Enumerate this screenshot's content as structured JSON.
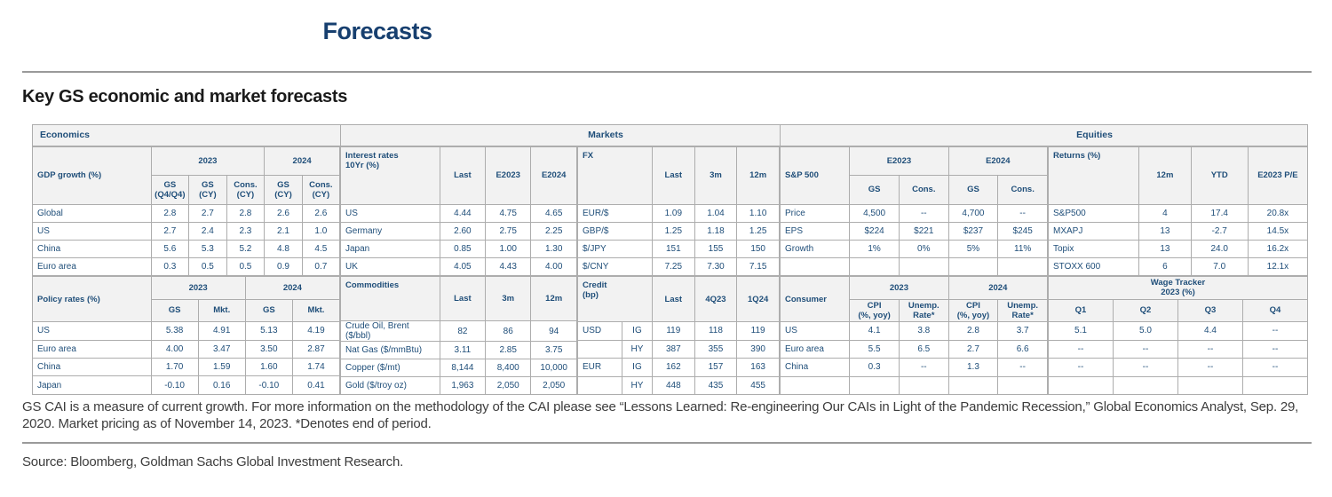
{
  "page": {
    "title": "Forecasts",
    "heading": "Key GS economic and market forecasts",
    "footnote": "GS CAI is a measure of current growth. For more information on the methodology of the CAI please see “Lessons Learned: Re-engineering Our CAIs in Light of the Pandemic Recession,” Global Economics Analyst, Sep. 29, 2020. Market pricing as of November 14, 2023. *Denotes end of period.",
    "source": "Source: Bloomberg, Goldman Sachs Global Investment Research."
  },
  "colors": {
    "title_navy": "#173F6F",
    "text_navy": "#1F4E79",
    "grid_line": "#ADADAD",
    "header_bg": "#F2F2F2"
  },
  "band": {
    "economics": "Economics",
    "markets": "Markets",
    "equities": "Equities"
  },
  "blocks": {
    "gdp": {
      "label_col": true,
      "hh": [
        32,
        33
      ],
      "header": [
        [
          {
            "t": "GDP growth (%)",
            "rs": 2,
            "c": "lbl"
          },
          {
            "t": "2023",
            "cs": 3
          },
          {
            "t": "2024",
            "cs": 2
          }
        ],
        [
          {
            "t": "GS\n(Q4/Q4)"
          },
          {
            "t": "GS\n(CY)"
          },
          {
            "t": "Cons.\n(CY)"
          },
          {
            "t": "GS\n(CY)"
          },
          {
            "t": "Cons.\n(CY)"
          }
        ]
      ],
      "rows": [
        [
          "Global",
          "2.8",
          "2.7",
          "2.8",
          "2.6",
          "2.6"
        ],
        [
          "US",
          "2.7",
          "2.4",
          "2.3",
          "2.1",
          "1.0"
        ],
        [
          "China",
          "5.6",
          "5.3",
          "5.2",
          "4.8",
          "4.5"
        ],
        [
          "Euro area",
          "0.3",
          "0.5",
          "0.5",
          "0.9",
          "0.7"
        ]
      ]
    },
    "policy": {
      "label_col": true,
      "hh": [
        25,
        25
      ],
      "header": [
        [
          {
            "t": "Policy rates (%)",
            "rs": 2,
            "c": "lbl"
          },
          {
            "t": "2023",
            "cs": 2
          },
          {
            "t": "2024",
            "cs": 2
          }
        ],
        [
          {
            "t": "GS"
          },
          {
            "t": "Mkt."
          },
          {
            "t": "GS"
          },
          {
            "t": "Mkt."
          }
        ]
      ],
      "rows": [
        [
          "US",
          "5.38",
          "4.91",
          "5.13",
          "4.19"
        ],
        [
          "Euro area",
          "4.00",
          "3.47",
          "3.50",
          "2.87"
        ],
        [
          "China",
          "1.70",
          "1.59",
          "1.60",
          "1.74"
        ],
        [
          "Japan",
          "-0.10",
          "0.16",
          "-0.10",
          "0.41"
        ]
      ]
    },
    "rates10": {
      "label_col": true,
      "hh": [
        65
      ],
      "header": [
        [
          {
            "t": "Interest rates\n10Yr (%)",
            "c": "lbl top"
          },
          {
            "t": "Last"
          },
          {
            "t": "E2023"
          },
          {
            "t": "E2024"
          }
        ]
      ],
      "rows": [
        [
          "US",
          "4.44",
          "4.75",
          "4.65"
        ],
        [
          "Germany",
          "2.60",
          "2.75",
          "2.25"
        ],
        [
          "Japan",
          "0.85",
          "1.00",
          "1.30"
        ],
        [
          "UK",
          "4.05",
          "4.43",
          "4.00"
        ]
      ]
    },
    "commodities": {
      "label_col": true,
      "hh": [
        50
      ],
      "header": [
        [
          {
            "t": "Commodities",
            "c": "lbl top"
          },
          {
            "t": "Last"
          },
          {
            "t": "3m"
          },
          {
            "t": "12m"
          }
        ]
      ],
      "rows": [
        [
          "Crude Oil, Brent ($/bbl)",
          "82",
          "86",
          "94"
        ],
        [
          "Nat Gas ($/mmBtu)",
          "3.11",
          "2.85",
          "3.75"
        ],
        [
          "Copper ($/mt)",
          "8,144",
          "8,400",
          "10,000"
        ],
        [
          "Gold ($/troy oz)",
          "1,963",
          "2,050",
          "2,050"
        ]
      ]
    },
    "fx": {
      "label_col": true,
      "hh": [
        65
      ],
      "header": [
        [
          {
            "t": "FX",
            "c": "lbl top"
          },
          {
            "t": "Last"
          },
          {
            "t": "3m"
          },
          {
            "t": "12m"
          }
        ]
      ],
      "rows": [
        [
          "EUR/$",
          "1.09",
          "1.04",
          "1.10"
        ],
        [
          "GBP/$",
          "1.25",
          "1.18",
          "1.25"
        ],
        [
          "$/JPY",
          "151",
          "155",
          "150"
        ],
        [
          "$/CNY",
          "7.25",
          "7.30",
          "7.15"
        ]
      ]
    },
    "credit": {
      "label_col": true,
      "hh": [
        50
      ],
      "header": [
        [
          {
            "t": "Credit\n(bp)",
            "cs": 2,
            "c": "lbl top"
          },
          {
            "t": "Last"
          },
          {
            "t": "4Q23"
          },
          {
            "t": "1Q24"
          }
        ]
      ],
      "rows": [
        [
          "USD",
          "IG",
          "119",
          "118",
          "119"
        ],
        [
          "",
          "HY",
          "387",
          "355",
          "390"
        ],
        [
          "EUR",
          "IG",
          "162",
          "157",
          "163"
        ],
        [
          "",
          "HY",
          "448",
          "435",
          "455"
        ]
      ]
    },
    "spx": {
      "label_col": true,
      "hh": [
        32,
        33
      ],
      "header": [
        [
          {
            "t": "S&P 500",
            "rs": 2,
            "c": "lbl"
          },
          {
            "t": "E2023",
            "cs": 2
          },
          {
            "t": "E2024",
            "cs": 2
          }
        ],
        [
          {
            "t": "GS"
          },
          {
            "t": "Cons."
          },
          {
            "t": "GS"
          },
          {
            "t": "Cons."
          }
        ]
      ],
      "rows": [
        [
          "Price",
          "4,500",
          "--",
          "4,700",
          "--"
        ],
        [
          "EPS",
          "$224",
          "$221",
          "$237",
          "$245"
        ],
        [
          "Growth",
          "1%",
          "0%",
          "5%",
          "11%"
        ],
        [
          "",
          "",
          "",
          "",
          ""
        ]
      ]
    },
    "consumer": {
      "label_col": true,
      "hh": [
        25,
        25
      ],
      "header": [
        [
          {
            "t": "Consumer",
            "rs": 2,
            "c": "lbl"
          },
          {
            "t": "2023",
            "cs": 2
          },
          {
            "t": "2024",
            "cs": 2
          }
        ],
        [
          {
            "t": "CPI\n(%, yoy)"
          },
          {
            "t": "Unemp.\nRate*"
          },
          {
            "t": "CPI\n(%, yoy)"
          },
          {
            "t": "Unemp.\nRate*"
          }
        ]
      ],
      "rows": [
        [
          "US",
          "4.1",
          "3.8",
          "2.8",
          "3.7"
        ],
        [
          "Euro area",
          "5.5",
          "6.5",
          "2.7",
          "6.6"
        ],
        [
          "China",
          "0.3",
          "--",
          "1.3",
          "--"
        ],
        [
          "",
          "",
          "",
          "",
          ""
        ]
      ]
    },
    "returns": {
      "label_col": true,
      "hh": [
        65
      ],
      "header": [
        [
          {
            "t": "Returns (%)",
            "c": "lbl top"
          },
          {
            "t": "12m"
          },
          {
            "t": "YTD"
          },
          {
            "t": "E2023 P/E"
          }
        ]
      ],
      "rows": [
        [
          "S&P500",
          "4",
          "17.4",
          "20.8x"
        ],
        [
          "MXAPJ",
          "13",
          "-2.7",
          "14.5x"
        ],
        [
          "Topix",
          "13",
          "24.0",
          "16.2x"
        ],
        [
          "STOXX 600",
          "6",
          "7.0",
          "12.1x"
        ]
      ]
    },
    "wage": {
      "label_col": false,
      "hh": [
        25,
        25
      ],
      "header": [
        [
          {
            "t": "Wage Tracker\n2023 (%)",
            "cs": 4
          }
        ],
        [
          {
            "t": "Q1"
          },
          {
            "t": "Q2"
          },
          {
            "t": "Q3"
          },
          {
            "t": "Q4"
          }
        ]
      ],
      "rows": [
        [
          "5.1",
          "5.0",
          "4.4",
          "--"
        ],
        [
          "--",
          "--",
          "--",
          "--"
        ],
        [
          "--",
          "--",
          "--",
          "--"
        ],
        [
          "",
          "",
          "",
          ""
        ]
      ]
    }
  }
}
